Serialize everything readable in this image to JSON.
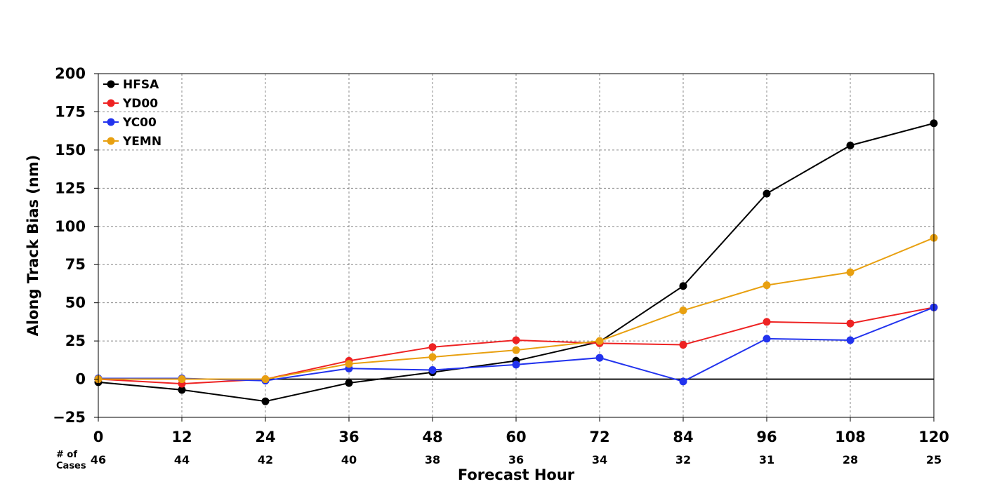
{
  "chart_data": {
    "type": "line",
    "xlabel": "Forecast Hour",
    "ylabel": "Along Track Bias (nm)",
    "x": [
      0,
      12,
      24,
      36,
      48,
      60,
      72,
      84,
      96,
      108,
      120
    ],
    "xticks": [
      "0",
      "12",
      "24",
      "36",
      "48",
      "60",
      "72",
      "84",
      "96",
      "108",
      "120"
    ],
    "ylim": [
      -25,
      200
    ],
    "yticks": [
      "−25",
      "0",
      "25",
      "50",
      "75",
      "100",
      "125",
      "150",
      "175",
      "200"
    ],
    "ytick_values": [
      -25,
      0,
      25,
      50,
      75,
      100,
      125,
      150,
      175,
      200
    ],
    "grid": true,
    "legend_position": "top-left",
    "cases_label_line1": "# of",
    "cases_label_line2": "Cases",
    "cases": [
      "46",
      "44",
      "42",
      "40",
      "38",
      "36",
      "34",
      "32",
      "31",
      "28",
      "25"
    ],
    "series": [
      {
        "name": "HFSA",
        "color": "#000000",
        "values": [
          -2,
          -7,
          -14.5,
          -2.5,
          4.5,
          12,
          24.5,
          61,
          121.5,
          153,
          167.5
        ]
      },
      {
        "name": "YD00",
        "color": "#ee2222",
        "values": [
          0,
          -3,
          0,
          12,
          21,
          25.5,
          23.5,
          22.5,
          37.5,
          36.5,
          47
        ]
      },
      {
        "name": "YC00",
        "color": "#2233ee",
        "values": [
          0.5,
          0.5,
          -1,
          7,
          6,
          9.5,
          14,
          -1.5,
          26.5,
          25.5,
          47
        ]
      },
      {
        "name": "YEMN",
        "color": "#e8a010",
        "values": [
          0,
          0,
          0,
          10,
          14.5,
          19,
          25,
          45,
          61.5,
          70,
          92.5
        ]
      }
    ]
  }
}
